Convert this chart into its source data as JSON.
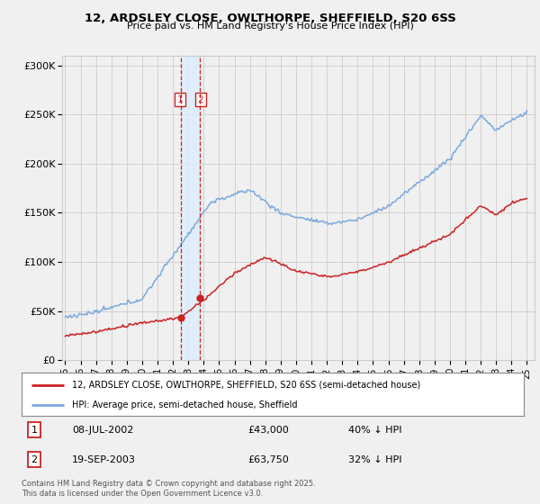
{
  "title": "12, ARDSLEY CLOSE, OWLTHORPE, SHEFFIELD, S20 6SS",
  "subtitle": "Price paid vs. HM Land Registry's House Price Index (HPI)",
  "legend_line1": "12, ARDSLEY CLOSE, OWLTHORPE, SHEFFIELD, S20 6SS (semi-detached house)",
  "legend_line2": "HPI: Average price, semi-detached house, Sheffield",
  "footnote": "Contains HM Land Registry data © Crown copyright and database right 2025.\nThis data is licensed under the Open Government Licence v3.0.",
  "transaction1_label": "1",
  "transaction1_date": "08-JUL-2002",
  "transaction1_price": "£43,000",
  "transaction1_hpi": "40% ↓ HPI",
  "transaction2_label": "2",
  "transaction2_date": "19-SEP-2003",
  "transaction2_price": "£63,750",
  "transaction2_hpi": "32% ↓ HPI",
  "transaction1_x": 2002.52,
  "transaction1_y": 43000,
  "transaction2_x": 2003.72,
  "transaction2_y": 63750,
  "hpi_color": "#7aaadd",
  "price_color": "#cc2222",
  "vline_color": "#cc2222",
  "shade_color": "#ddeeff",
  "background_color": "#f0f0f0",
  "plot_bg_color": "#f0f0f0",
  "grid_color": "#cccccc",
  "ylim": [
    0,
    310000
  ],
  "xlim": [
    1994.8,
    2025.5
  ],
  "yticks": [
    0,
    50000,
    100000,
    150000,
    200000,
    250000,
    300000
  ],
  "ytick_labels": [
    "£0",
    "£50K",
    "£100K",
    "£150K",
    "£200K",
    "£250K",
    "£300K"
  ],
  "xticks": [
    1995,
    1996,
    1997,
    1998,
    1999,
    2000,
    2001,
    2002,
    2003,
    2004,
    2005,
    2006,
    2007,
    2008,
    2009,
    2010,
    2011,
    2012,
    2013,
    2014,
    2015,
    2016,
    2017,
    2018,
    2019,
    2020,
    2021,
    2022,
    2023,
    2024,
    2025
  ]
}
